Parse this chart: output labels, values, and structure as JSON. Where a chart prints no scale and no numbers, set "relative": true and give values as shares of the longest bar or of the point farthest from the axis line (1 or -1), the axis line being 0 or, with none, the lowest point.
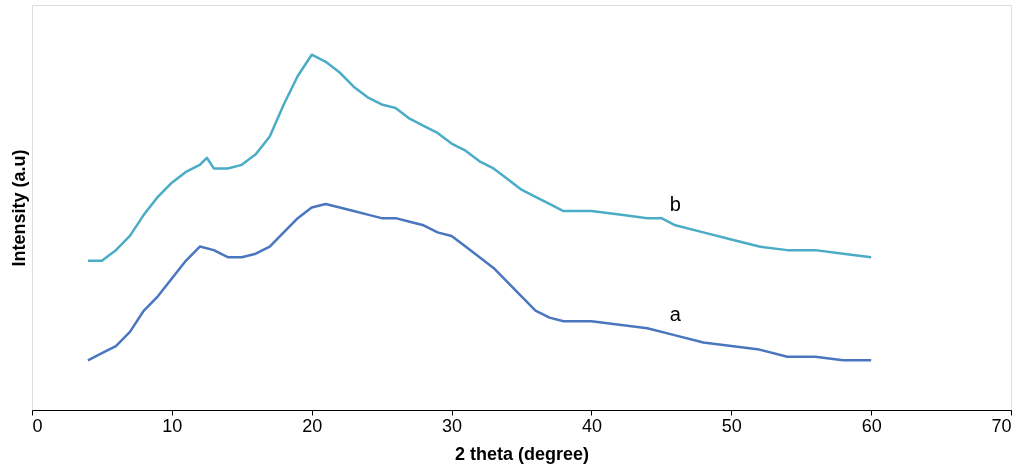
{
  "chart_data": {
    "type": "line",
    "xlabel": "2 theta (degree)",
    "ylabel": "Intensity (a.u)",
    "relative": true,
    "xlim": [
      0,
      70
    ],
    "xticks": [
      0,
      10,
      20,
      30,
      40,
      50,
      60,
      70
    ],
    "grid": false,
    "marker": "none",
    "line_style": "solid",
    "legend": false,
    "series": [
      {
        "name": "b",
        "color": "#4bacc6",
        "x": [
          4,
          5,
          6,
          7,
          8,
          9,
          10,
          11,
          12,
          12.5,
          13,
          14,
          15,
          16,
          17,
          18,
          19,
          20,
          21,
          22,
          23,
          24,
          25,
          26,
          27,
          28,
          29,
          30,
          31,
          32,
          33,
          34,
          35,
          36,
          37,
          38,
          40,
          42,
          44,
          45,
          46,
          48,
          50,
          52,
          54,
          56,
          58,
          60
        ],
        "values": [
          0.42,
          0.42,
          0.45,
          0.49,
          0.55,
          0.6,
          0.64,
          0.67,
          0.69,
          0.71,
          0.68,
          0.68,
          0.69,
          0.72,
          0.77,
          0.86,
          0.94,
          1.0,
          0.98,
          0.95,
          0.91,
          0.88,
          0.86,
          0.85,
          0.82,
          0.8,
          0.78,
          0.75,
          0.73,
          0.7,
          0.68,
          0.65,
          0.62,
          0.6,
          0.58,
          0.56,
          0.56,
          0.55,
          0.54,
          0.54,
          0.52,
          0.5,
          0.48,
          0.46,
          0.45,
          0.45,
          0.44,
          0.43
        ]
      },
      {
        "name": "a",
        "color": "#4a76c0",
        "x": [
          4,
          5,
          6,
          7,
          8,
          9,
          10,
          11,
          12,
          13,
          14,
          15,
          16,
          17,
          18,
          19,
          20,
          21,
          22,
          23,
          24,
          25,
          26,
          27,
          28,
          29,
          30,
          31,
          32,
          33,
          34,
          35,
          36,
          37,
          38,
          40,
          42,
          44,
          46,
          48,
          50,
          52,
          54,
          56,
          58,
          60
        ],
        "values": [
          0.14,
          0.16,
          0.18,
          0.22,
          0.28,
          0.32,
          0.37,
          0.42,
          0.46,
          0.45,
          0.43,
          0.43,
          0.44,
          0.46,
          0.5,
          0.54,
          0.57,
          0.58,
          0.57,
          0.56,
          0.55,
          0.54,
          0.54,
          0.53,
          0.52,
          0.5,
          0.49,
          0.46,
          0.43,
          0.4,
          0.36,
          0.32,
          0.28,
          0.26,
          0.25,
          0.25,
          0.24,
          0.23,
          0.21,
          0.19,
          0.18,
          0.17,
          0.15,
          0.15,
          0.14,
          0.14
        ]
      }
    ]
  }
}
